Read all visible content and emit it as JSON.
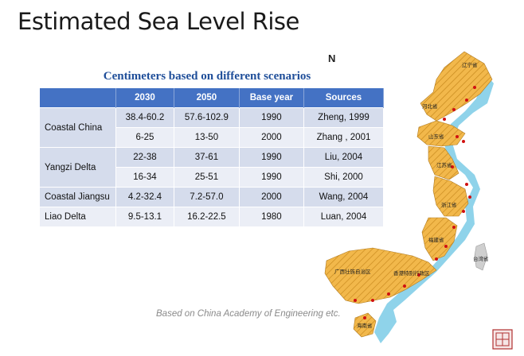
{
  "slide": {
    "title": "Estimated Sea Level Rise"
  },
  "table": {
    "subtitle": "Centimeters based on different scenarios",
    "headers": [
      "",
      "2030",
      "2050",
      "Base year",
      "Sources"
    ],
    "groups": [
      {
        "region": "Coastal China",
        "rows": [
          {
            "y2030": "38.4-60.2",
            "y2050": "57.6-102.9",
            "base": "1990",
            "source": "Zheng, 1999"
          },
          {
            "y2030": "6-25",
            "y2050": "13-50",
            "base": "2000",
            "source": "Zhang , 2001"
          }
        ]
      },
      {
        "region": "Yangzi Delta",
        "rows": [
          {
            "y2030": "22-38",
            "y2050": "37-61",
            "base": "1990",
            "source": "Liu, 2004"
          },
          {
            "y2030": "16-34",
            "y2050": "25-51",
            "base": "1990",
            "source": "Shi, 2000"
          }
        ]
      },
      {
        "region": "Coastal Jiangsu",
        "rows": [
          {
            "y2030": "4.2-32.4",
            "y2050": "7.2-57.0",
            "base": "2000",
            "source": "Wang, 2004"
          }
        ]
      },
      {
        "region": "Liao Delta",
        "rows": [
          {
            "y2030": "9.5-13.1",
            "y2050": "16.2-22.5",
            "base": "1980",
            "source": "Luan, 2004"
          }
        ]
      }
    ]
  },
  "map": {
    "north_symbol": "N",
    "colors": {
      "land": "#f2b84b",
      "hatch": "#c98a1e",
      "sea": "#8fd3ea",
      "city": "#d01010",
      "taiwan": "#cfcfcf"
    },
    "labels": [
      "辽宁省",
      "河北省",
      "天津市",
      "山东省",
      "江苏省",
      "上海市",
      "浙江省",
      "福建省",
      "广东省",
      "广西壮族自治区",
      "海南省",
      "台湾省",
      "香港特别行政区"
    ]
  },
  "credit": "Based on China Academy of Engineering etc."
}
